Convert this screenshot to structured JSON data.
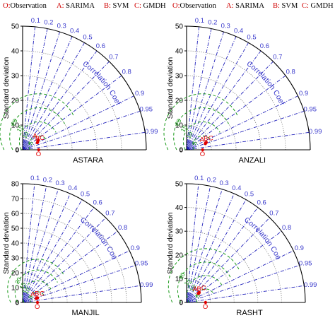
{
  "legend": [
    {
      "key": "O:",
      "label": "Observation"
    },
    {
      "key": "A:",
      "label": "SARIMA"
    },
    {
      "key": "B:",
      "label": "SVM"
    },
    {
      "key": "C:",
      "label": "GMDH"
    },
    {
      "key": "O:",
      "label": "Observation"
    },
    {
      "key": "A:",
      "label": "SARIMA"
    },
    {
      "key": "B:",
      "label": "SVM"
    },
    {
      "key": "C:",
      "label": "GMDH"
    }
  ],
  "colors": {
    "ref_line": "#2222bb",
    "rmsd_arc": "#1a9a1a",
    "std_arc": "#777777",
    "frame": "#000000",
    "point": "#e00000",
    "label_text": "#3a3acc",
    "rmsd_label": "#1a9a1a"
  },
  "chart_data": [
    {
      "type": "taylor",
      "title": "ASTARA",
      "ylabel": "Standard deviation",
      "arc_label": "Correlation Coefficient",
      "std_max": 50,
      "std_ticks": [
        "0",
        "10",
        "20",
        "30",
        "40",
        "50"
      ],
      "correlation_ticks": [
        "0.1",
        "0.2",
        "0.3",
        "0.4",
        "0.5",
        "0.6",
        "0.7",
        "0.8",
        "0.9",
        "0.95",
        "0.99"
      ],
      "rmsd_labels": [
        "5",
        "10",
        "15",
        "20"
      ],
      "points": [
        {
          "label": "O",
          "std": 6.5,
          "corr": 1.0
        },
        {
          "label": "A",
          "std": 7.5,
          "corr": 0.85
        },
        {
          "label": "B",
          "std": 6.6,
          "corr": 0.9
        },
        {
          "label": "C",
          "std": 6.8,
          "corr": 0.89
        }
      ]
    },
    {
      "type": "taylor",
      "title": "ANZALI",
      "ylabel": "Standard deviation",
      "arc_label": "Correlation Coefficient",
      "std_max": 50,
      "std_ticks": [
        "0",
        "10",
        "20",
        "30",
        "40",
        "50"
      ],
      "correlation_ticks": [
        "0.1",
        "0.2",
        "0.3",
        "0.4",
        "0.5",
        "0.6",
        "0.7",
        "0.8",
        "0.9",
        "0.95",
        "0.99"
      ],
      "rmsd_labels": [
        "5",
        "10",
        "15",
        "20"
      ],
      "points": [
        {
          "label": "O",
          "std": 6.5,
          "corr": 1.0
        },
        {
          "label": "A",
          "std": 8.0,
          "corr": 0.95
        },
        {
          "label": "B",
          "std": 8.2,
          "corr": 0.94
        },
        {
          "label": "C",
          "std": 8.5,
          "corr": 0.935
        }
      ]
    },
    {
      "type": "taylor",
      "title": "MANJIL",
      "ylabel": "Standard deviation",
      "arc_label": "Correlation Coefficient",
      "std_max": 80,
      "std_ticks": [
        "0",
        "10",
        "20",
        "30",
        "40",
        "50",
        "60",
        "70",
        "80"
      ],
      "correlation_ticks": [
        "0.1",
        "0.2",
        "0.3",
        "0.4",
        "0.5",
        "0.6",
        "0.7",
        "0.8",
        "0.9",
        "0.95",
        "0.99"
      ],
      "rmsd_labels": [
        "5",
        "10",
        "15",
        "20"
      ],
      "points": [
        {
          "label": "O",
          "std": 10.0,
          "corr": 1.0
        },
        {
          "label": "A",
          "std": 9.5,
          "corr": 0.96
        },
        {
          "label": "B",
          "std": 10.0,
          "corr": 0.95
        },
        {
          "label": "C",
          "std": 10.5,
          "corr": 0.955
        }
      ]
    },
    {
      "type": "taylor",
      "title": "RASHT",
      "ylabel": "Standard deviation",
      "arc_label": "Correlation Coefficient",
      "std_max": 50,
      "std_ticks": [
        "0",
        "10",
        "20",
        "30",
        "40",
        "50"
      ],
      "correlation_ticks": [
        "0.1",
        "0.2",
        "0.3",
        "0.4",
        "0.5",
        "0.6",
        "0.7",
        "0.8",
        "0.9",
        "0.95",
        "0.99"
      ],
      "rmsd_labels": [
        "5",
        "10",
        "15",
        "20"
      ],
      "points": [
        {
          "label": "O",
          "std": 8.0,
          "corr": 1.0
        },
        {
          "label": "A",
          "std": 6.2,
          "corr": 0.79
        },
        {
          "label": "B",
          "std": 6.5,
          "corr": 0.8
        },
        {
          "label": "C",
          "std": 6.8,
          "corr": 0.78
        }
      ]
    }
  ]
}
